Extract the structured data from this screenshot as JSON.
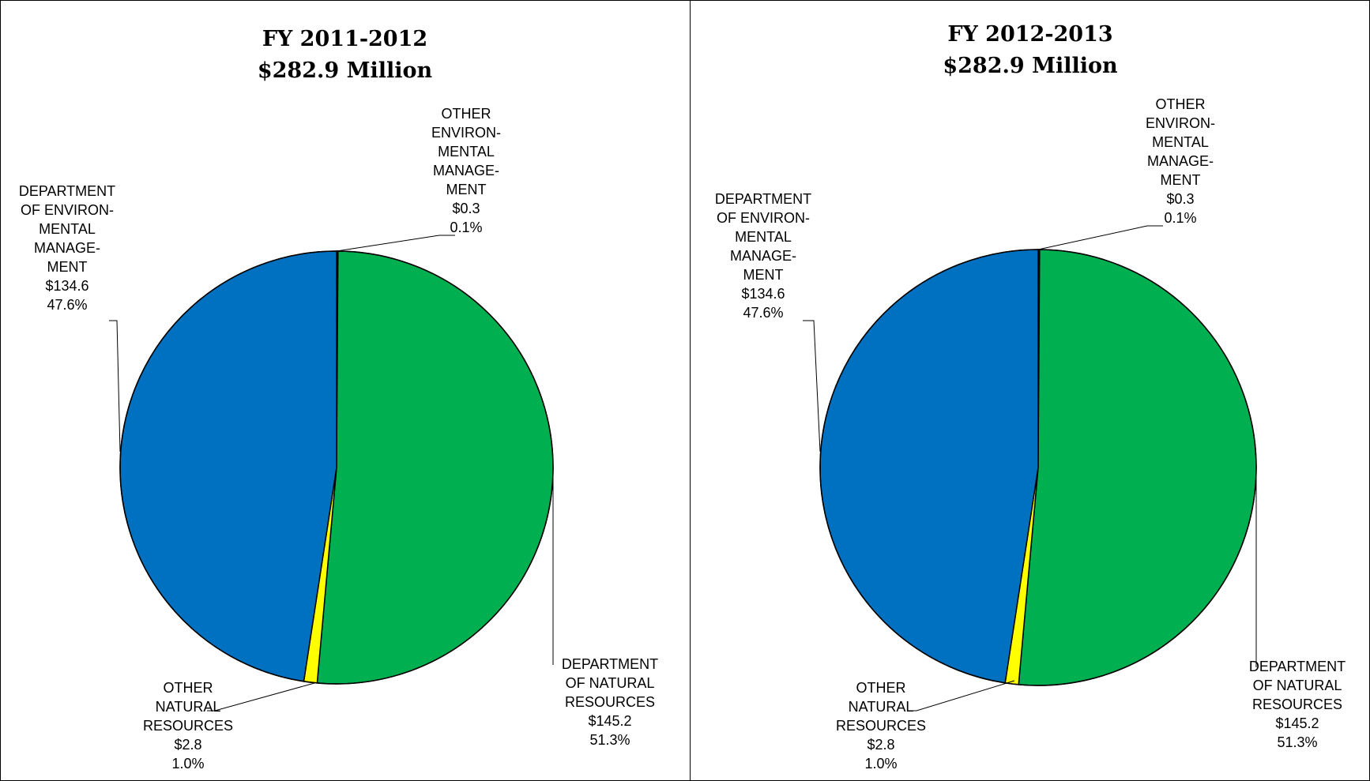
{
  "chart_data": [
    {
      "type": "pie",
      "title": "FY 2011-2012",
      "subtitle": "$282.9 Million",
      "slices": [
        {
          "label_lines": [
            "OTHER",
            "ENVIRON-",
            "MENTAL",
            "MANAGE-",
            "MENT"
          ],
          "value": 0.3,
          "value_text": "$0.3",
          "percent": 0.1,
          "percent_text": "0.1%",
          "color": "#000000"
        },
        {
          "label_lines": [
            "DEPARTMENT",
            "OF NATURAL",
            "RESOURCES"
          ],
          "value": 145.2,
          "value_text": "$145.2",
          "percent": 51.3,
          "percent_text": "51.3%",
          "color": "#00B050"
        },
        {
          "label_lines": [
            "OTHER",
            "NATURAL",
            "RESOURCES"
          ],
          "value": 2.8,
          "value_text": "$2.8",
          "percent": 1.0,
          "percent_text": "1.0%",
          "color": "#FFFF00"
        },
        {
          "label_lines": [
            "DEPARTMENT",
            "OF ENVIRON-",
            "MENTAL",
            "MANAGE-",
            "MENT"
          ],
          "value": 134.6,
          "value_text": "$134.6",
          "percent": 47.6,
          "percent_text": "47.6%",
          "color": "#0070C0"
        }
      ]
    },
    {
      "type": "pie",
      "title": "FY 2012-2013",
      "subtitle": "$282.9 Million",
      "slices": [
        {
          "label_lines": [
            "OTHER",
            "ENVIRON-",
            "MENTAL",
            "MANAGE-",
            "MENT"
          ],
          "value": 0.3,
          "value_text": "$0.3",
          "percent": 0.1,
          "percent_text": "0.1%",
          "color": "#000000"
        },
        {
          "label_lines": [
            "DEPARTMENT",
            "OF NATURAL",
            "RESOURCES"
          ],
          "value": 145.2,
          "value_text": "$145.2",
          "percent": 51.3,
          "percent_text": "51.3%",
          "color": "#00B050"
        },
        {
          "label_lines": [
            "OTHER",
            "NATURAL",
            "RESOURCES"
          ],
          "value": 2.8,
          "value_text": "$2.8",
          "percent": 1.0,
          "percent_text": "1.0%",
          "color": "#FFFF00"
        },
        {
          "label_lines": [
            "DEPARTMENT",
            "OF ENVIRON-",
            "MENTAL",
            "MANAGE-",
            "MENT"
          ],
          "value": 134.6,
          "value_text": "$134.6",
          "percent": 47.6,
          "percent_text": "47.6%",
          "color": "#0070C0"
        }
      ]
    }
  ]
}
